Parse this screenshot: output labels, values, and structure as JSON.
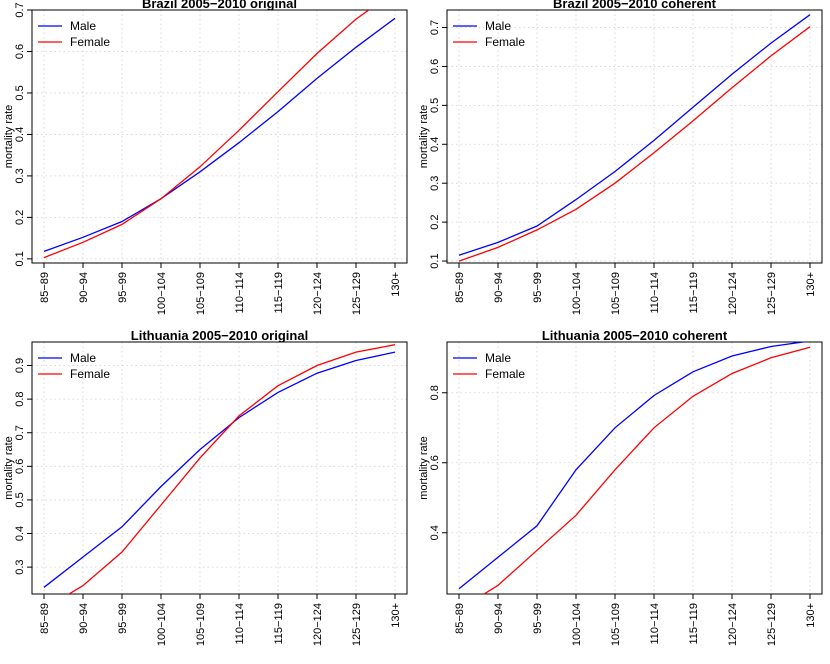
{
  "figure": {
    "panels": [
      {
        "title": "Brazil 2005−2010 original"
      },
      {
        "title": "Brazil 2005−2010 coherent"
      },
      {
        "title": "Lithuania 2005−2010 original"
      },
      {
        "title": "Lithuania 2005−2010 coherent"
      }
    ]
  },
  "chart_data": [
    {
      "type": "line",
      "title": "Brazil 2005−2010 original",
      "ylabel": "mortality rate",
      "xlabel": "",
      "categories": [
        "85−89",
        "90−94",
        "95−99",
        "100−104",
        "105−109",
        "110−114",
        "115−119",
        "120−124",
        "125−129",
        "130+"
      ],
      "ylim": [
        0.09,
        0.7
      ],
      "yticks": [
        0.1,
        0.2,
        0.3,
        0.4,
        0.5,
        0.6,
        0.7
      ],
      "yticklabels": [
        "0.1",
        "0.2",
        "0.3",
        "0.4",
        "0.5",
        "0.6",
        "0.7"
      ],
      "grid": true,
      "legend_position": "top-left",
      "series": [
        {
          "name": "Male",
          "color": "#0000ff",
          "values": [
            0.118,
            0.152,
            0.19,
            0.245,
            0.31,
            0.38,
            0.455,
            0.535,
            0.61,
            0.68
          ]
        },
        {
          "name": "Female",
          "color": "#ff0000",
          "values": [
            0.103,
            0.14,
            0.183,
            0.245,
            0.322,
            0.41,
            0.503,
            0.595,
            0.678,
            0.745
          ]
        }
      ]
    },
    {
      "type": "line",
      "title": "Brazil 2005−2010 coherent",
      "ylabel": "mortality rate",
      "xlabel": "",
      "categories": [
        "85−89",
        "90−94",
        "95−99",
        "100−104",
        "105−109",
        "110−114",
        "115−119",
        "120−124",
        "125−129",
        "130+"
      ],
      "ylim": [
        0.095,
        0.745
      ],
      "yticks": [
        0.1,
        0.2,
        0.3,
        0.4,
        0.5,
        0.6,
        0.7
      ],
      "yticklabels": [
        "0.1",
        "0.2",
        "0.3",
        "0.4",
        "0.5",
        "0.6",
        "0.7"
      ],
      "grid": true,
      "legend_position": "top-left",
      "series": [
        {
          "name": "Male",
          "color": "#0000ff",
          "values": [
            0.115,
            0.148,
            0.19,
            0.258,
            0.33,
            0.41,
            0.495,
            0.58,
            0.66,
            0.733
          ]
        },
        {
          "name": "Female",
          "color": "#ff0000",
          "values": [
            0.1,
            0.135,
            0.18,
            0.233,
            0.3,
            0.378,
            0.46,
            0.545,
            0.627,
            0.702
          ]
        }
      ]
    },
    {
      "type": "line",
      "title": "Lithuania 2005−2010 original",
      "ylabel": "mortality rate",
      "xlabel": "",
      "categories": [
        "85−89",
        "90−94",
        "95−99",
        "100−104",
        "105−109",
        "110−114",
        "115−119",
        "120−124",
        "125−129",
        "130+"
      ],
      "ylim": [
        0.22,
        0.97
      ],
      "yticks": [
        0.3,
        0.4,
        0.5,
        0.6,
        0.7,
        0.8,
        0.9
      ],
      "yticklabels": [
        "0.3",
        "0.4",
        "0.5",
        "0.6",
        "0.7",
        "0.8",
        "0.9"
      ],
      "grid": true,
      "legend_position": "top-left",
      "series": [
        {
          "name": "Male",
          "color": "#0000ff",
          "values": [
            0.24,
            0.33,
            0.42,
            0.54,
            0.65,
            0.745,
            0.82,
            0.877,
            0.915,
            0.94
          ]
        },
        {
          "name": "Female",
          "color": "#ff0000",
          "values": [
            0.175,
            0.245,
            0.345,
            0.485,
            0.625,
            0.75,
            0.84,
            0.9,
            0.94,
            0.962
          ]
        }
      ]
    },
    {
      "type": "line",
      "title": "Lithuania 2005−2010 coherent",
      "ylabel": "mortality rate",
      "xlabel": "",
      "categories": [
        "85−89",
        "90−94",
        "95−99",
        "100−104",
        "105−109",
        "110−114",
        "115−119",
        "120−124",
        "125−129",
        "130+"
      ],
      "ylim": [
        0.225,
        0.945
      ],
      "yticks": [
        0.4,
        0.6,
        0.8
      ],
      "yticklabels": [
        "0.4",
        "0.6",
        "0.8"
      ],
      "grid": true,
      "legend_position": "top-left",
      "series": [
        {
          "name": "Male",
          "color": "#0000ff",
          "values": [
            0.24,
            0.33,
            0.42,
            0.58,
            0.7,
            0.792,
            0.86,
            0.905,
            0.932,
            0.948
          ]
        },
        {
          "name": "Female",
          "color": "#ff0000",
          "values": [
            0.18,
            0.25,
            0.35,
            0.45,
            0.58,
            0.7,
            0.79,
            0.855,
            0.9,
            0.93
          ]
        }
      ]
    }
  ]
}
